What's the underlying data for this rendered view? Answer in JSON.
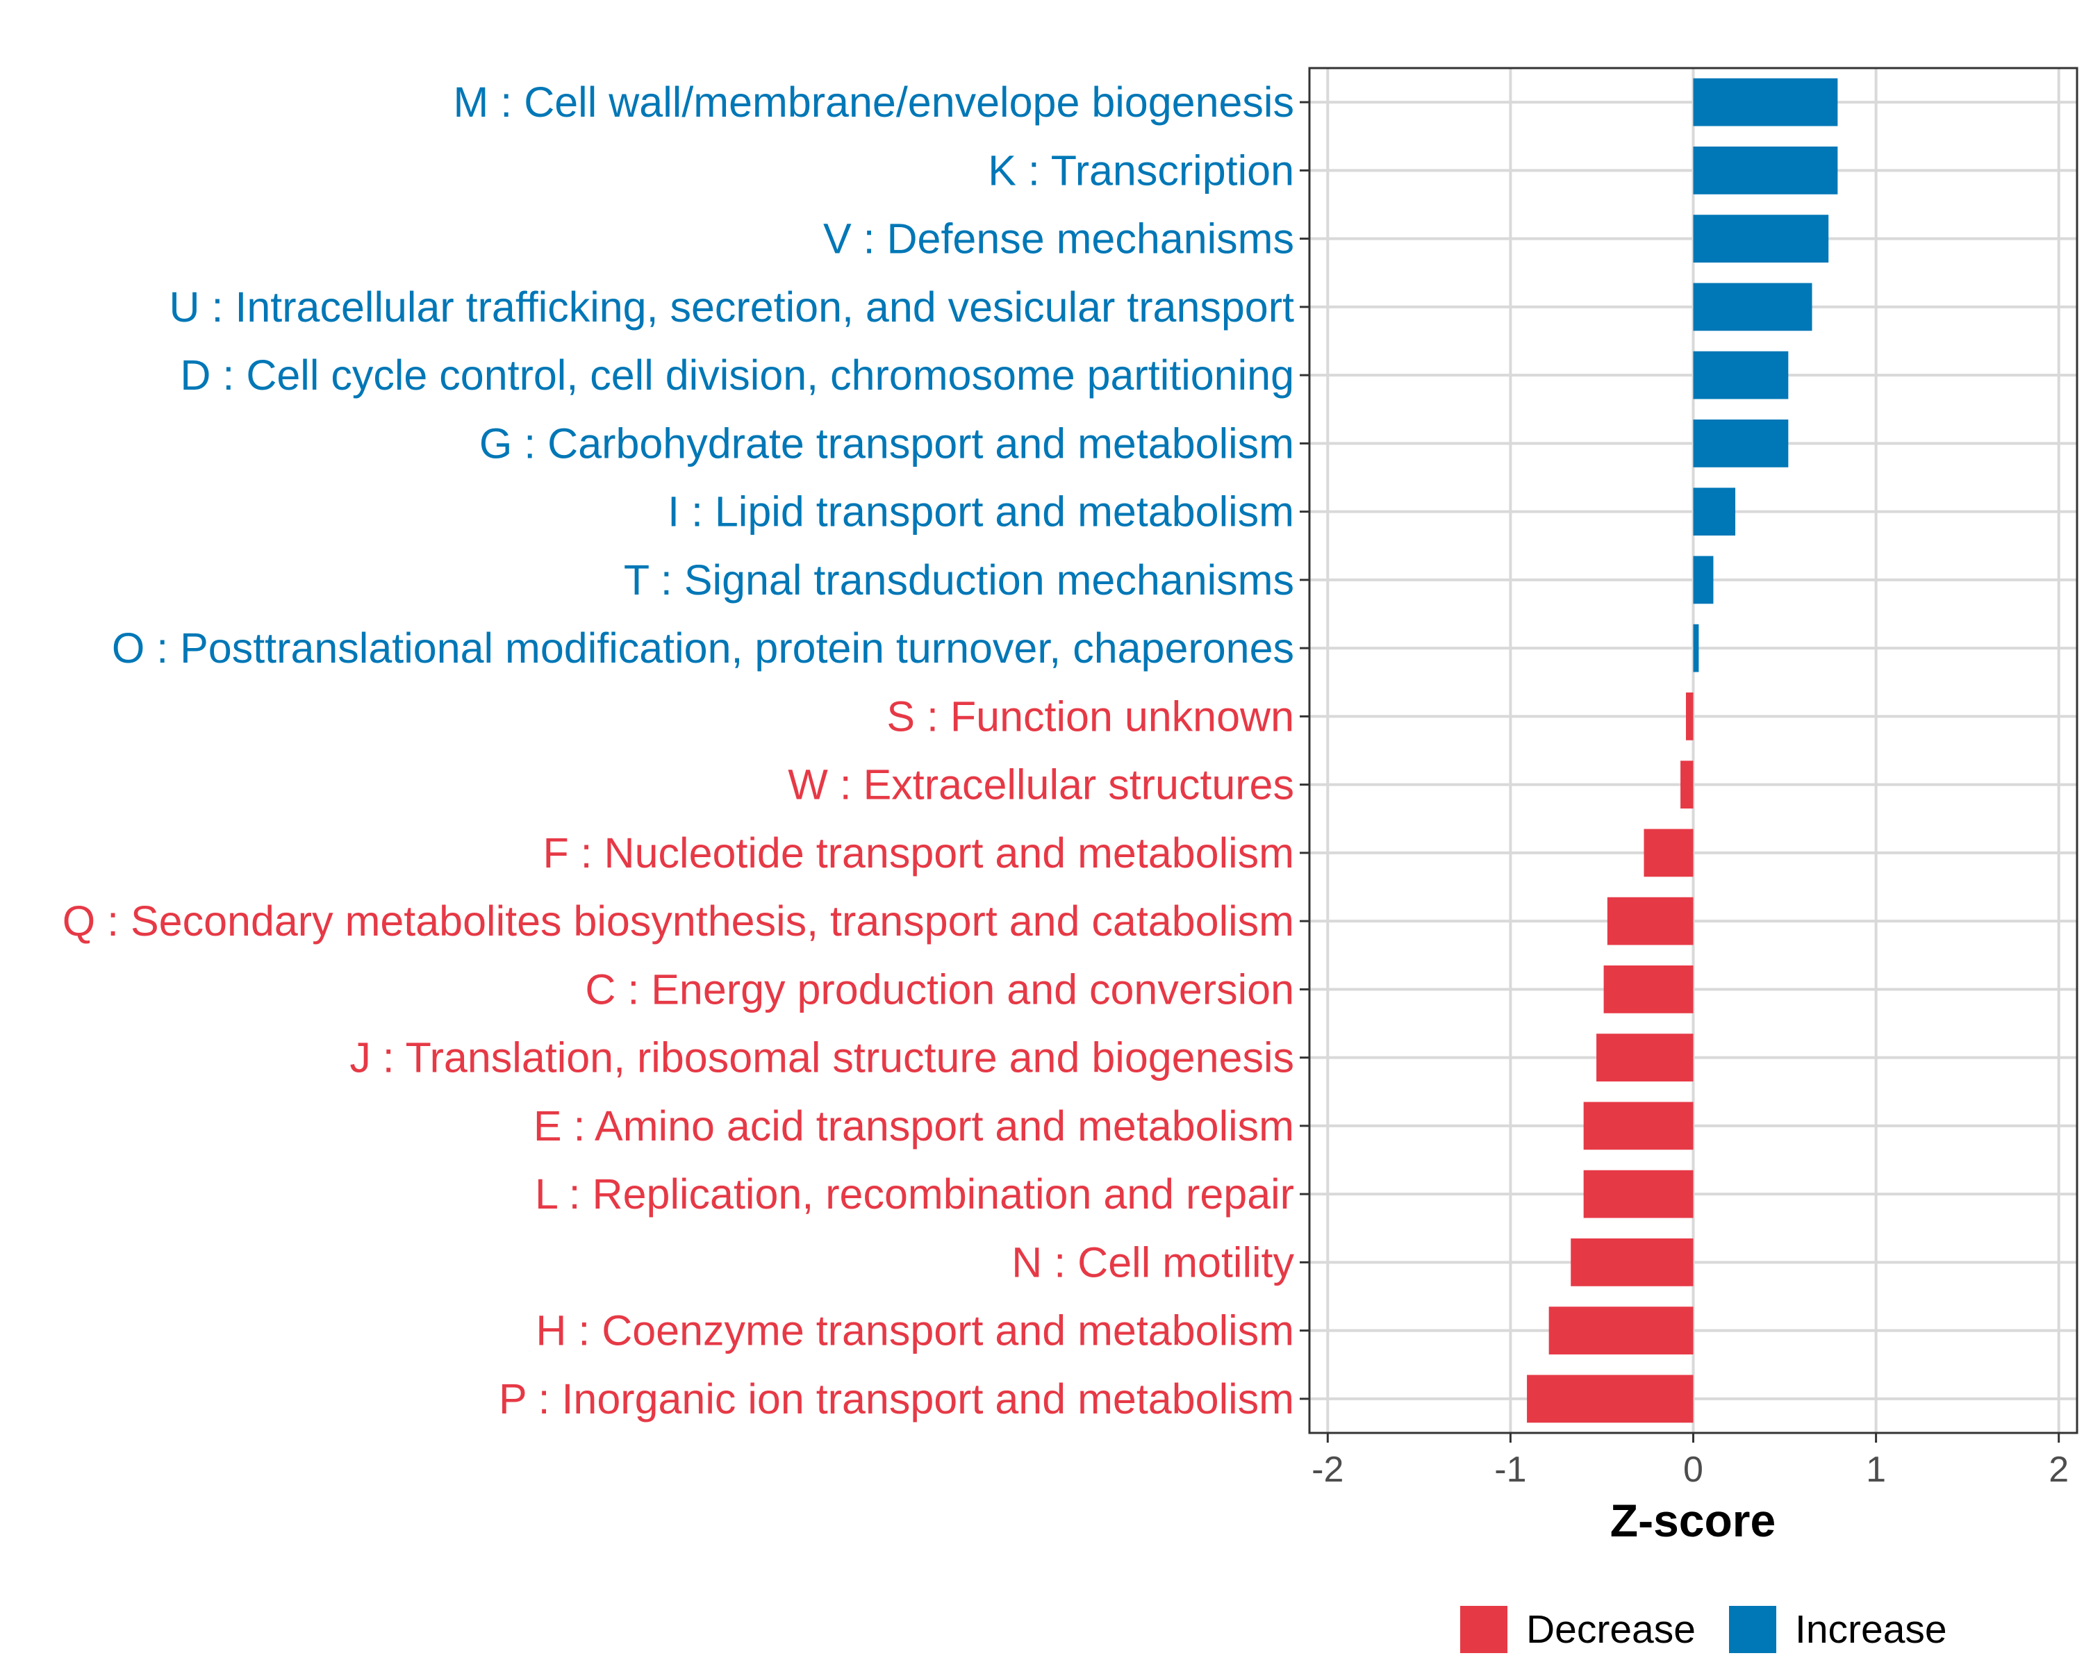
{
  "chart_data": {
    "type": "bar",
    "orientation": "horizontal",
    "xlabel": "Z-score",
    "xlim": [
      -2.1,
      2.1
    ],
    "xticks": [
      -2,
      -1,
      0,
      1,
      2
    ],
    "xtick_labels": [
      "-2",
      "-1",
      "0",
      "1",
      "2"
    ],
    "grid": true,
    "legend_position": "bottom",
    "colors": {
      "Decrease": "#E63946",
      "Increase": "#0077B6"
    },
    "legend": [
      {
        "name": "Decrease",
        "color": "#E63946"
      },
      {
        "name": "Increase",
        "color": "#0077B6"
      }
    ],
    "categories": [
      {
        "label": "M : Cell wall/membrane/envelope biogenesis",
        "value": 0.79,
        "group": "Increase"
      },
      {
        "label": "K : Transcription",
        "value": 0.79,
        "group": "Increase"
      },
      {
        "label": "V : Defense mechanisms",
        "value": 0.74,
        "group": "Increase"
      },
      {
        "label": "U : Intracellular trafficking, secretion, and vesicular transport",
        "value": 0.65,
        "group": "Increase"
      },
      {
        "label": "D : Cell cycle control, cell division, chromosome partitioning",
        "value": 0.52,
        "group": "Increase"
      },
      {
        "label": "G : Carbohydrate transport and metabolism",
        "value": 0.52,
        "group": "Increase"
      },
      {
        "label": "I : Lipid transport and metabolism",
        "value": 0.23,
        "group": "Increase"
      },
      {
        "label": "T : Signal transduction mechanisms",
        "value": 0.11,
        "group": "Increase"
      },
      {
        "label": "O : Posttranslational modification, protein turnover, chaperones",
        "value": 0.03,
        "group": "Increase"
      },
      {
        "label": "S : Function unknown",
        "value": -0.04,
        "group": "Decrease"
      },
      {
        "label": "W : Extracellular structures",
        "value": -0.07,
        "group": "Decrease"
      },
      {
        "label": "F : Nucleotide transport and metabolism",
        "value": -0.27,
        "group": "Decrease"
      },
      {
        "label": "Q : Secondary metabolites biosynthesis, transport and catabolism",
        "value": -0.47,
        "group": "Decrease"
      },
      {
        "label": "C : Energy production and conversion",
        "value": -0.49,
        "group": "Decrease"
      },
      {
        "label": "J : Translation, ribosomal structure and biogenesis",
        "value": -0.53,
        "group": "Decrease"
      },
      {
        "label": "E : Amino acid transport and metabolism",
        "value": -0.6,
        "group": "Decrease"
      },
      {
        "label": "L : Replication, recombination and repair",
        "value": -0.6,
        "group": "Decrease"
      },
      {
        "label": "N : Cell motility",
        "value": -0.67,
        "group": "Decrease"
      },
      {
        "label": "H : Coenzyme transport and metabolism",
        "value": -0.79,
        "group": "Decrease"
      },
      {
        "label": "P : Inorganic ion transport and metabolism",
        "value": -0.91,
        "group": "Decrease"
      }
    ]
  }
}
